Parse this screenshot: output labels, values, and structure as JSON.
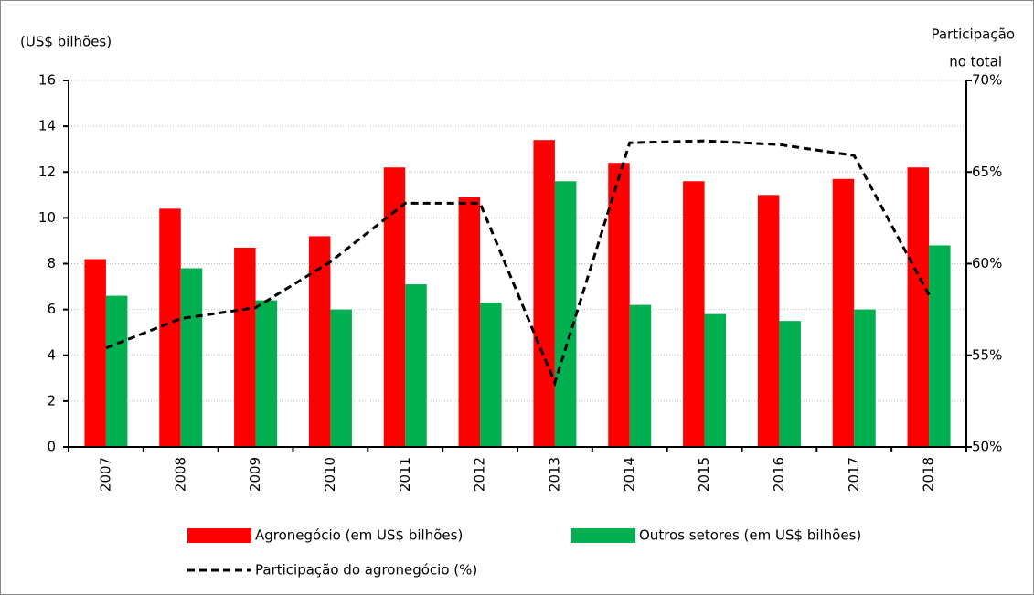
{
  "chart_data": {
    "type": "bar_line",
    "ylabel": "(US$ bilhões)",
    "y2label": [
      "Participação",
      "no total"
    ],
    "categories": [
      "2007",
      "2008",
      "2009",
      "2010",
      "2011",
      "2012",
      "2013",
      "2014",
      "2015",
      "2016",
      "2017",
      "2018"
    ],
    "series": [
      {
        "name": "Agronegócio (em US$ bilhões)",
        "type": "bar",
        "color": "#ff0000",
        "values": [
          8.2,
          10.4,
          8.7,
          9.2,
          12.2,
          10.9,
          13.4,
          12.4,
          11.6,
          11.0,
          11.7,
          12.2
        ]
      },
      {
        "name": "Outros setores (em US$ bilhões)",
        "type": "bar",
        "color": "#00b050",
        "values": [
          6.6,
          7.8,
          6.4,
          6.0,
          7.1,
          6.3,
          11.6,
          6.2,
          5.8,
          5.5,
          6.0,
          8.8
        ]
      },
      {
        "name": "Participação do agronegócio (%)",
        "type": "line",
        "axis": "y2",
        "color": "#000000",
        "dashed": true,
        "values": [
          55.4,
          57.0,
          57.6,
          60.1,
          63.3,
          63.3,
          53.5,
          66.6,
          66.7,
          66.5,
          65.9,
          58.3
        ]
      }
    ],
    "ylim": [
      0,
      16
    ],
    "yticks": [
      0,
      2,
      4,
      6,
      8,
      10,
      12,
      14,
      16
    ],
    "y2lim": [
      50,
      70
    ],
    "y2ticks": [
      {
        "value": 50,
        "label": "50%"
      },
      {
        "value": 55,
        "label": "55%"
      },
      {
        "value": 60,
        "label": "60%"
      },
      {
        "value": 65,
        "label": "65%"
      },
      {
        "value": 70,
        "label": "70%"
      }
    ],
    "grid": true
  }
}
